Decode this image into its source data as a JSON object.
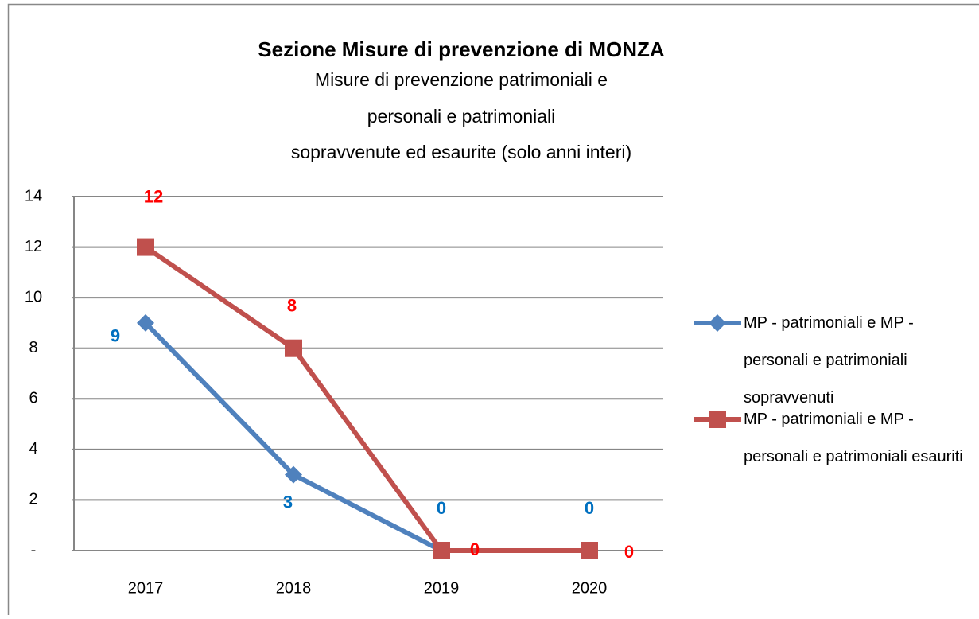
{
  "chart_data": {
    "type": "line",
    "title": "Sezione Misure di prevenzione di MONZA",
    "subtitle": [
      "Misure di prevenzione patrimoniali e",
      "personali e patrimoniali",
      "sopravvenute ed esaurite (solo anni interi)"
    ],
    "categories": [
      "2017",
      "2018",
      "2019",
      "2020"
    ],
    "series": [
      {
        "name": "MP - patrimoniali e MP - personali e patrimoniali sopravvenuti",
        "color": "#4f81bd",
        "label_color": "#0070c0",
        "marker": "diamond",
        "values": [
          9,
          3,
          0,
          0
        ]
      },
      {
        "name": "MP - patrimoniali e MP - personali e patrimoniali esauriti",
        "color": "#c0504d",
        "label_color": "#ff0000",
        "marker": "square",
        "values": [
          12,
          8,
          0,
          0
        ]
      }
    ],
    "ylim": [
      0,
      14
    ],
    "yticks": [
      {
        "value": 0,
        "label": "-"
      },
      2,
      4,
      6,
      8,
      10,
      12,
      14
    ],
    "grid": true,
    "legend": "right"
  }
}
